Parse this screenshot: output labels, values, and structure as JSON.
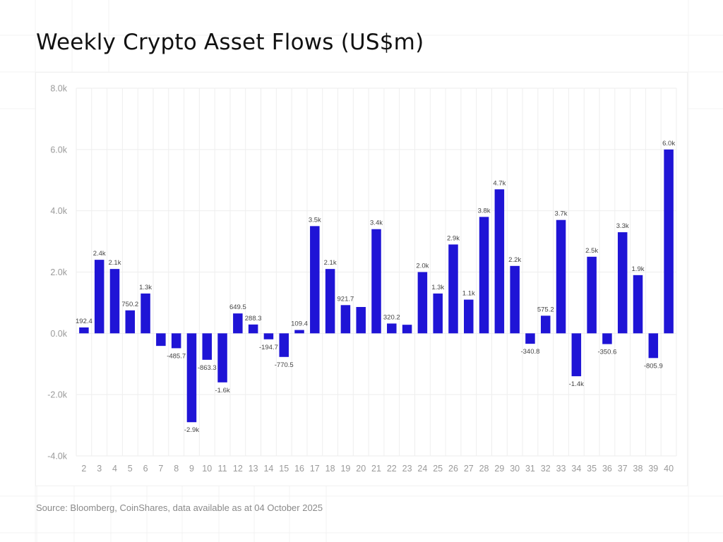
{
  "title": "Weekly Crypto Asset Flows (US$m)",
  "source": "Source: Bloomberg, CoinShares, data available as at 04 October 2025",
  "colors": {
    "bar": "#1f14d6",
    "grid": "#eeeeee",
    "tick": "#9a9a9a",
    "label": "#444444"
  },
  "chart_data": {
    "type": "bar",
    "title": "Weekly Crypto Asset Flows (US$m)",
    "xlabel": "",
    "ylabel": "",
    "ylim": [
      -4000,
      8000
    ],
    "yticks": [
      -4000,
      -2000,
      0,
      2000,
      4000,
      6000,
      8000
    ],
    "ytick_labels": [
      "-4.0k",
      "-2.0k",
      "0.0k",
      "2.0k",
      "4.0k",
      "6.0k",
      "8.0k"
    ],
    "grid": true,
    "categories": [
      "2",
      "3",
      "4",
      "5",
      "6",
      "7",
      "8",
      "9",
      "10",
      "11",
      "12",
      "13",
      "14",
      "15",
      "16",
      "17",
      "18",
      "19",
      "20",
      "21",
      "22",
      "23",
      "24",
      "25",
      "26",
      "27",
      "28",
      "29",
      "30",
      "31",
      "32",
      "33",
      "34",
      "35",
      "36",
      "37",
      "38",
      "39",
      "40"
    ],
    "values": [
      192.4,
      2400,
      2100,
      750.2,
      1300,
      -410,
      -485.7,
      -2900,
      -863.3,
      -1600,
      649.5,
      288.3,
      -194.7,
      -770.5,
      109.4,
      3500,
      2100,
      921.7,
      860,
      3400,
      320.2,
      280,
      2000,
      1300,
      2900,
      1100,
      3800,
      4700,
      2200,
      -340.8,
      575.2,
      3700,
      -1400,
      2500,
      -350.6,
      3300,
      1900,
      -805.9,
      6000
    ],
    "data_labels": [
      "192.4",
      "2.4k",
      "2.1k",
      "750.2",
      "1.3k",
      "",
      "-485.7",
      "-2.9k",
      "-863.3",
      "-1.6k",
      "649.5",
      "288.3",
      "-194.7",
      "-770.5",
      "109.4",
      "3.5k",
      "2.1k",
      "921.7",
      "",
      "3.4k",
      "320.2",
      "",
      "2.0k",
      "1.3k",
      "2.9k",
      "1.1k",
      "3.8k",
      "4.7k",
      "2.2k",
      "-340.8",
      "575.2",
      "3.7k",
      "-1.4k",
      "2.5k",
      "-350.6",
      "3.3k",
      "1.9k",
      "-805.9",
      "6.0k"
    ]
  }
}
